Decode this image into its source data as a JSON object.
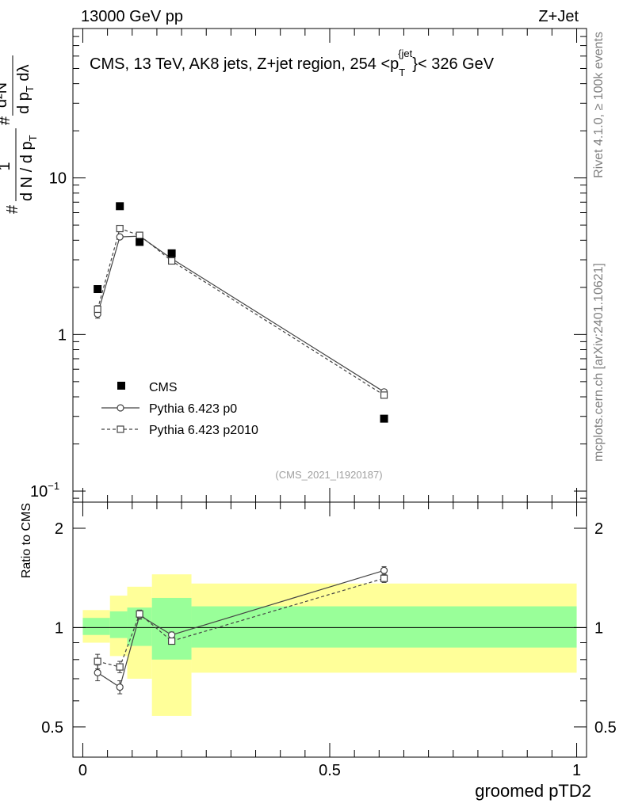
{
  "header": {
    "left": "13000 GeV pp",
    "right": "Z+Jet"
  },
  "side_label_top": "Rivet 4.1.0, ≥ 100k events",
  "side_label_bottom": "mcplots.cern.ch [arXiv:2401.10621]",
  "chart_data": [
    {
      "type": "scatter",
      "panel": "main",
      "title": "CMS, 13 TeV, AK8 jets, Z+jet region, 254 <p_T^{jet}< 326 GeV",
      "title_parts": {
        "prefix": "CMS, 13 TeV, AK8 jets, Z+jet region, 254 <p",
        "sub": "T",
        "sup": "{jet",
        "suffix": "}< 326 GeV"
      },
      "ylabel": "1/(dN/dp_T) d²N/(dp_T dλ)",
      "ylabel_parts": {
        "frac_left_num": "1",
        "frac_left_den": "d N / d p",
        "frac_left_den_sub": "T",
        "frac_right_num": "d²N",
        "frac_right_den": "d p",
        "frac_right_den_sub": "T",
        "frac_right_den_end": " dλ",
        "hash": "#"
      },
      "yscale": "log",
      "ylim": [
        0.085,
        90
      ],
      "xlim": [
        -0.02,
        1.02
      ],
      "ytick_labels": [
        {
          "value": 0.1,
          "label": "10",
          "sup": "−1"
        },
        {
          "value": 1,
          "label": "1",
          "sup": ""
        },
        {
          "value": 10,
          "label": "10",
          "sup": ""
        }
      ],
      "annotation": "(CMS_2021_I1920187)",
      "legend": [
        {
          "name": "CMS",
          "marker": "filled-square"
        },
        {
          "name": "Pythia 6.423 p0",
          "marker": "open-circle",
          "line": "solid"
        },
        {
          "name": "Pythia 6.423 p2010",
          "marker": "open-square",
          "line": "dashed"
        }
      ],
      "series": [
        {
          "name": "CMS",
          "x": [
            0.03,
            0.075,
            0.115,
            0.18,
            0.61
          ],
          "y": [
            1.95,
            6.6,
            3.9,
            3.3,
            0.29
          ]
        },
        {
          "name": "Pythia 6.423 p0",
          "x": [
            0.03,
            0.075,
            0.115,
            0.18,
            0.61
          ],
          "y": [
            1.35,
            4.2,
            4.25,
            3.05,
            0.43
          ],
          "yerr": [
            0.08,
            0.1,
            0.1,
            0.08,
            0.015
          ]
        },
        {
          "name": "Pythia 6.423 p2010",
          "x": [
            0.03,
            0.075,
            0.115,
            0.18,
            0.61
          ],
          "y": [
            1.45,
            4.75,
            4.3,
            2.95,
            0.41
          ],
          "yerr": [
            0.08,
            0.1,
            0.1,
            0.08,
            0.015
          ]
        }
      ]
    },
    {
      "type": "line",
      "panel": "ratio",
      "ylabel": "Ratio to CMS",
      "yscale": "log",
      "ylim": [
        0.405,
        2.4
      ],
      "xlim": [
        -0.02,
        1.02
      ],
      "xlabel": "groomed pTD2",
      "ytick_labels": [
        {
          "value": 0.5,
          "label": "0.5"
        },
        {
          "value": 1,
          "label": "1"
        },
        {
          "value": 2,
          "label": "2"
        }
      ],
      "xtick_labels": [
        {
          "value": 0,
          "label": "0"
        },
        {
          "value": 0.5,
          "label": "0.5"
        },
        {
          "value": 1,
          "label": "1"
        }
      ],
      "bins": [
        {
          "lo": 0.0,
          "hi": 0.055,
          "green": [
            0.95,
            1.07
          ],
          "yellow": [
            0.9,
            1.13
          ]
        },
        {
          "lo": 0.055,
          "hi": 0.09,
          "green": [
            0.93,
            1.12
          ],
          "yellow": [
            0.82,
            1.25
          ]
        },
        {
          "lo": 0.09,
          "hi": 0.14,
          "green": [
            0.88,
            1.15
          ],
          "yellow": [
            0.7,
            1.33
          ]
        },
        {
          "lo": 0.14,
          "hi": 0.22,
          "green": [
            0.8,
            1.23
          ],
          "yellow": [
            0.54,
            1.45
          ]
        },
        {
          "lo": 0.22,
          "hi": 1.0,
          "green": [
            0.87,
            1.16
          ],
          "yellow": [
            0.73,
            1.36
          ]
        }
      ],
      "series": [
        {
          "name": "Pythia 6.423 p0",
          "x": [
            0.03,
            0.075,
            0.115,
            0.18,
            0.61
          ],
          "y": [
            0.73,
            0.66,
            1.09,
            0.95,
            1.49
          ],
          "yerr": [
            0.04,
            0.03,
            0.03,
            0.02,
            0.04
          ]
        },
        {
          "name": "Pythia 6.423 p2010",
          "x": [
            0.03,
            0.075,
            0.115,
            0.18,
            0.61
          ],
          "y": [
            0.79,
            0.76,
            1.1,
            0.91,
            1.41
          ],
          "yerr": [
            0.04,
            0.03,
            0.03,
            0.02,
            0.04
          ]
        }
      ]
    }
  ]
}
